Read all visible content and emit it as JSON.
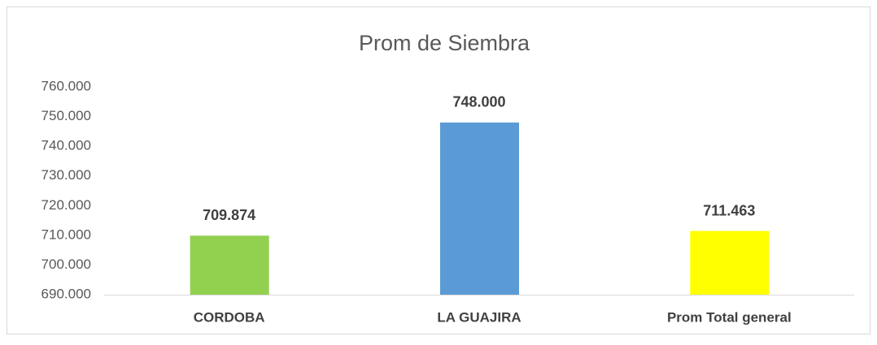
{
  "chart_data": {
    "type": "bar",
    "title": "Prom de Siembra",
    "categories": [
      "CORDOBA",
      "LA GUAJIRA",
      "Prom Total general"
    ],
    "values": [
      709874,
      748000,
      711463
    ],
    "value_labels": [
      "709.874",
      "748.000",
      "711.463"
    ],
    "colors": [
      "#92d050",
      "#5b9bd5",
      "#ffff00"
    ],
    "ylim": [
      690000,
      760000
    ],
    "yticks": [
      {
        "value": 690000,
        "label": "690.000"
      },
      {
        "value": 700000,
        "label": "700.000"
      },
      {
        "value": 710000,
        "label": "710.000"
      },
      {
        "value": 720000,
        "label": "720.000"
      },
      {
        "value": 730000,
        "label": "730.000"
      },
      {
        "value": 740000,
        "label": "740.000"
      },
      {
        "value": 750000,
        "label": "750.000"
      },
      {
        "value": 760000,
        "label": "760.000"
      }
    ],
    "grid": false
  }
}
